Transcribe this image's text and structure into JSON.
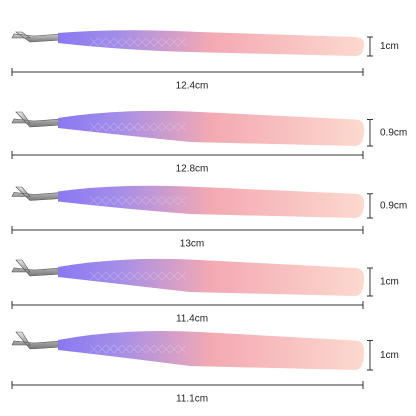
{
  "items": [
    {
      "width": "1cm",
      "length": "12.4cm"
    },
    {
      "width": "0.9cm",
      "length": "12.8cm"
    },
    {
      "width": "0.9cm",
      "length": "13cm"
    },
    {
      "width": "1cm",
      "length": "11.4cm"
    },
    {
      "width": "1cm",
      "length": "11.1cm"
    }
  ]
}
